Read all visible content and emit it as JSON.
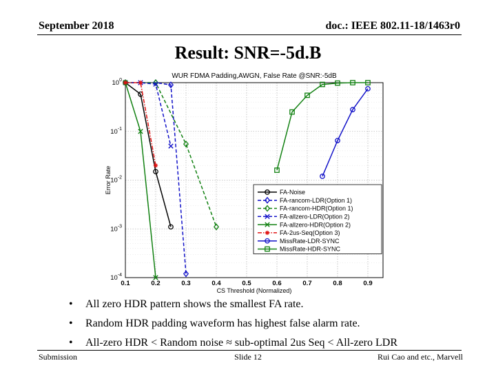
{
  "header": {
    "date": "September 2018",
    "doc_id": "doc.: IEEE 802.11-18/1463r0"
  },
  "title": "Result: SNR=-5d.B",
  "chart_data": {
    "type": "line",
    "title": "WUR FDMA Padding,AWGN, False Rate @SNR:-5dB",
    "xlabel": "CS Threshold (Normalized)",
    "ylabel": "Error Rate",
    "yscale": "log",
    "xlim": [
      0.1,
      0.95
    ],
    "ylim": [
      0.0001,
      1
    ],
    "xticks": [
      0.1,
      0.2,
      0.3,
      0.4,
      0.5,
      0.6,
      0.7,
      0.8,
      0.9
    ],
    "xtick_labels": [
      "0.1",
      "0.2",
      "0.3",
      "0.4",
      "0.5",
      "0.6",
      "0.7",
      "0.8",
      "0.9"
    ],
    "yticks": [
      1,
      0.1,
      0.01,
      0.001,
      0.0001
    ],
    "ytick_labels": [
      [
        "10",
        "0"
      ],
      [
        "10",
        "-1"
      ],
      [
        "10",
        "-2"
      ],
      [
        "10",
        "-3"
      ],
      [
        "10",
        "-4"
      ]
    ],
    "grid": true,
    "legend_position": "lower-right",
    "series": [
      {
        "name": "FA-Noise",
        "color": "#000000",
        "dash": "solid",
        "marker": "circle",
        "x": [
          0.1,
          0.15,
          0.2,
          0.25
        ],
        "y": [
          1,
          0.58,
          0.015,
          0.0011
        ]
      },
      {
        "name": "FA-rancom-LDR(Option 1)",
        "color": "#1010c8",
        "dash": "dashed",
        "marker": "diamond",
        "x": [
          0.1,
          0.2,
          0.25,
          0.3
        ],
        "y": [
          1,
          1,
          0.9,
          0.00012
        ]
      },
      {
        "name": "FA-rancom-HDR(Option 1)",
        "color": "#108010",
        "dash": "dashed",
        "marker": "diamond",
        "x": [
          0.1,
          0.2,
          0.3,
          0.4
        ],
        "y": [
          1,
          1,
          0.055,
          0.0011
        ]
      },
      {
        "name": "FA-allzero-LDR(Option 2)",
        "color": "#1010c8",
        "dash": "dashed",
        "marker": "x",
        "x": [
          0.1,
          0.15,
          0.2,
          0.25
        ],
        "y": [
          1,
          1,
          0.93,
          0.05
        ]
      },
      {
        "name": "FA-allzero-HDR(Option 2)",
        "color": "#108010",
        "dash": "solid",
        "marker": "x",
        "x": [
          0.1,
          0.15,
          0.2
        ],
        "y": [
          1,
          0.1,
          0.0001
        ]
      },
      {
        "name": "FA-2us-Seq(Option 3)",
        "color": "#e01010",
        "dash": "dashdot",
        "marker": "star",
        "x": [
          0.1,
          0.15,
          0.2
        ],
        "y": [
          1,
          1,
          0.02
        ]
      },
      {
        "name": "MissRate-LDR-SYNC",
        "color": "#1010c8",
        "dash": "solid",
        "marker": "circle",
        "x": [
          0.75,
          0.8,
          0.85,
          0.9
        ],
        "y": [
          0.012,
          0.065,
          0.28,
          0.75
        ]
      },
      {
        "name": "MissRate-HDR-SYNC",
        "color": "#108010",
        "dash": "solid",
        "marker": "square",
        "x": [
          0.6,
          0.65,
          0.7,
          0.75,
          0.8,
          0.85,
          0.9
        ],
        "y": [
          0.016,
          0.25,
          0.55,
          0.92,
          0.98,
          1,
          1
        ]
      }
    ]
  },
  "bullets": [
    "All zero HDR pattern shows the smallest FA rate.",
    "Random HDR padding waveform has highest false alarm rate.",
    "All-zero HDR < Random noise ≈ sub-optimal 2us Seq < All-zero LDR"
  ],
  "bullet_glyph": "•",
  "footer": {
    "left": "Submission",
    "center": "Slide 12",
    "right": "Rui Cao and etc., Marvell"
  }
}
